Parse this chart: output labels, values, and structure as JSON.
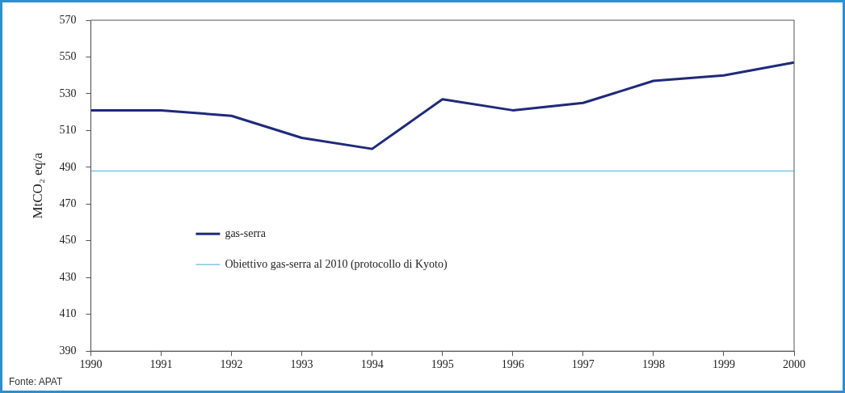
{
  "chart_data": {
    "type": "line",
    "ylabel": "MtCO₂ eq/a",
    "categories": [
      "1990",
      "1991",
      "1992",
      "1993",
      "1994",
      "1995",
      "1996",
      "1997",
      "1998",
      "1999",
      "2000"
    ],
    "series": [
      {
        "name": "gas-serra",
        "color": "#1f2a7a",
        "values": [
          521,
          521,
          518,
          506,
          500,
          527,
          521,
          525,
          537,
          540,
          547
        ]
      },
      {
        "name": "Obiettivo gas-serra al 2010 (protocollo di Kyoto)",
        "color": "#7cc8e8",
        "values": [
          488,
          488,
          488,
          488,
          488,
          488,
          488,
          488,
          488,
          488,
          488
        ]
      }
    ],
    "ylim": [
      390,
      570
    ],
    "yticks": [
      390,
      410,
      430,
      450,
      470,
      490,
      510,
      530,
      550,
      570
    ],
    "grid": false,
    "legend": "bottom left",
    "marker": "none",
    "line_style": "solid",
    "annotations": [
      "Fonte: APAT"
    ]
  }
}
